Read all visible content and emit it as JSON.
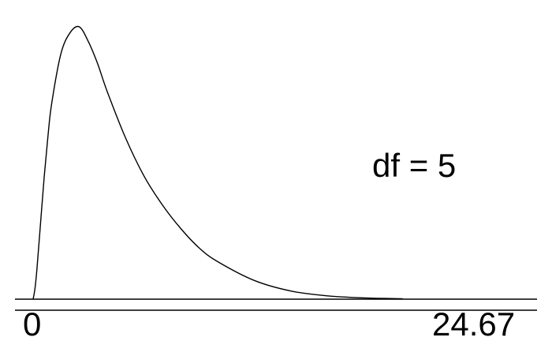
{
  "chart_data": {
    "type": "line",
    "distribution": "chi-square",
    "annotation": "df = 5",
    "df": 5,
    "xlim": [
      0,
      24.67
    ],
    "x_tick_labels": [
      "0",
      "24.67"
    ],
    "grid": false,
    "series": [
      {
        "x": [
          0,
          0.1,
          0.2,
          0.4,
          0.6,
          0.8,
          1,
          1.5,
          2,
          2.5,
          3,
          3.5,
          4,
          5,
          6,
          7,
          8,
          9,
          10,
          12,
          14,
          16,
          18,
          20
        ],
        "y": [
          0,
          0.0079,
          0.0216,
          0.0567,
          0.0919,
          0.1219,
          0.1465,
          0.1841,
          0.2001,
          0.2045,
          0.1931,
          0.1765,
          0.1563,
          0.1212,
          0.0925,
          0.0707,
          0.0529,
          0.0383,
          0.0281,
          0.0139,
          0.006,
          0.0024,
          0.0009,
          0.0003
        ]
      }
    ],
    "colors": {
      "curve": "#000000",
      "axis": "#000000",
      "background": "#ffffff"
    }
  }
}
